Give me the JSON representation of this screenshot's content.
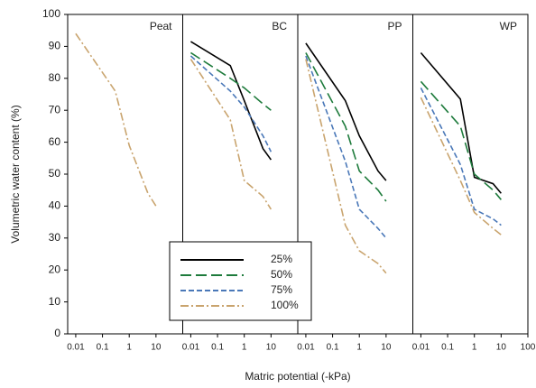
{
  "chart_data": [
    {
      "type": "line",
      "title": "Peat",
      "ylabel": "Volumetric water content (%)",
      "xlabel": "Matric potential (-kPa)",
      "xscale": "log",
      "xlim": [
        0.005,
        100
      ],
      "xticks": [
        0.01,
        0.1,
        1,
        10
      ],
      "ylim": [
        0,
        100
      ],
      "yticks": [
        0,
        10,
        20,
        30,
        40,
        50,
        60,
        70,
        80,
        90,
        100
      ],
      "x": [
        0.01,
        0.3,
        1,
        5,
        10
      ],
      "series": [
        {
          "name": "100%",
          "color": "#c9a46e",
          "dash": "9 3 2 3",
          "values": [
            94,
            76,
            59,
            44,
            40
          ]
        }
      ]
    },
    {
      "type": "line",
      "title": "BC",
      "xscale": "log",
      "xlim": [
        0.005,
        100
      ],
      "xticks": [
        0.01,
        0.1,
        1,
        10
      ],
      "ylim": [
        0,
        100
      ],
      "x": [
        0.01,
        0.3,
        1,
        5,
        10
      ],
      "series": [
        {
          "name": "25%",
          "color": "#000000",
          "dash": "none",
          "values": [
            91.5,
            84,
            73,
            58,
            54.5
          ]
        },
        {
          "name": "50%",
          "color": "#1e7b3c",
          "dash": "12 5",
          "values": [
            88,
            80,
            77,
            72,
            70
          ]
        },
        {
          "name": "75%",
          "color": "#4a78b8",
          "dash": "6 3",
          "values": [
            87,
            76,
            71,
            62,
            57
          ]
        },
        {
          "name": "100%",
          "color": "#c9a46e",
          "dash": "9 3 2 3",
          "values": [
            86,
            67,
            48,
            43,
            39
          ]
        }
      ]
    },
    {
      "type": "line",
      "title": "PP",
      "xscale": "log",
      "xlim": [
        0.005,
        100
      ],
      "xticks": [
        0.01,
        0.1,
        1,
        10
      ],
      "ylim": [
        0,
        100
      ],
      "x": [
        0.01,
        0.3,
        1,
        5,
        10
      ],
      "series": [
        {
          "name": "25%",
          "color": "#000000",
          "dash": "none",
          "values": [
            91,
            73,
            62,
            51,
            48
          ]
        },
        {
          "name": "50%",
          "color": "#1e7b3c",
          "dash": "12 5",
          "values": [
            88,
            65,
            51,
            45,
            41.5
          ]
        },
        {
          "name": "75%",
          "color": "#4a78b8",
          "dash": "6 3",
          "values": [
            87,
            54,
            39,
            33,
            30
          ]
        },
        {
          "name": "100%",
          "color": "#c9a46e",
          "dash": "9 3 2 3",
          "values": [
            86,
            34,
            26,
            22,
            19
          ]
        }
      ]
    },
    {
      "type": "line",
      "title": "WP",
      "xscale": "log",
      "xlim": [
        0.005,
        100
      ],
      "xticks": [
        0.01,
        0.1,
        1,
        10,
        100
      ],
      "ylim": [
        0,
        100
      ],
      "x": [
        0.01,
        0.3,
        1,
        5,
        10
      ],
      "series": [
        {
          "name": "25%",
          "color": "#000000",
          "dash": "none",
          "values": [
            88,
            73.5,
            49,
            47,
            44
          ]
        },
        {
          "name": "50%",
          "color": "#1e7b3c",
          "dash": "12 5",
          "values": [
            79,
            65,
            50,
            45,
            42
          ]
        },
        {
          "name": "75%",
          "color": "#4a78b8",
          "dash": "6 3",
          "values": [
            77,
            53,
            39,
            36,
            34
          ]
        },
        {
          "name": "100%",
          "color": "#c9a46e",
          "dash": "9 3 2 3",
          "values": [
            74,
            48,
            38,
            33,
            31
          ]
        }
      ]
    }
  ]
}
